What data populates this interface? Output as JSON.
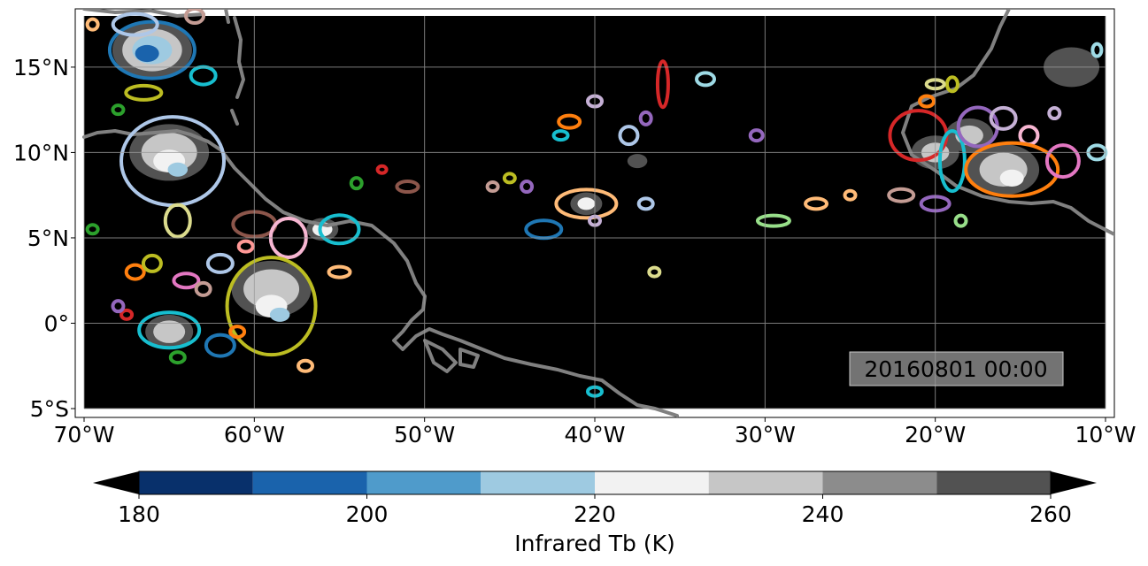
{
  "map": {
    "lon_ticks": [
      "70°W",
      "60°W",
      "50°W",
      "40°W",
      "30°W",
      "20°W",
      "10°W"
    ],
    "lat_ticks": [
      "15°N",
      "10°N",
      "5°N",
      "0°",
      "5°S"
    ],
    "lon_range": [
      -70,
      -10
    ],
    "lat_range": [
      -5,
      18
    ],
    "background": "#000000",
    "coastline_color": "#808080",
    "gridlines": true,
    "timestamp": "20160801 00:00"
  },
  "colorbar": {
    "label": "Infrared Tb (K)",
    "tick_labels": [
      "180",
      "200",
      "220",
      "240",
      "260"
    ],
    "levels": [
      180,
      190,
      200,
      210,
      220,
      230,
      240,
      250,
      260
    ],
    "colors": [
      "#08306b",
      "#1a63ac",
      "#4f9bcb",
      "#9ecae1",
      "#f2f2f2",
      "#c6c6c6",
      "#8c8c8c",
      "#525252"
    ],
    "extend": "both"
  },
  "features": {
    "contour_colors": [
      "#1f77b4",
      "#ff7f0e",
      "#2ca02c",
      "#d62728",
      "#9467bd",
      "#8c564b",
      "#e377c2",
      "#bcbd22",
      "#17becf",
      "#aec7e8",
      "#ffbb78",
      "#98df8a",
      "#ff9896",
      "#c5b0d5",
      "#c49c94",
      "#f7b6d2",
      "#dbdb8d",
      "#9edae5"
    ]
  }
}
